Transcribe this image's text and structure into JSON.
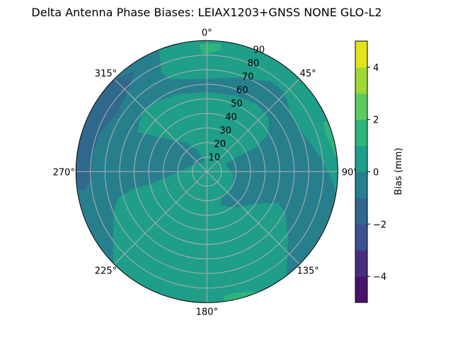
{
  "chart_data": {
    "type": "polar-contour",
    "title": "Delta Antenna Phase Biases: LEIAX1203+GNSS  NONE GLO-L2",
    "theta_ticks": [
      "0°",
      "45°",
      "90°",
      "135°",
      "180°",
      "225°",
      "270°",
      "315°"
    ],
    "theta_zero": "top",
    "theta_direction": "clockwise",
    "r_ticks": [
      "10",
      "20",
      "30",
      "40",
      "50",
      "60",
      "70",
      "80",
      "90"
    ],
    "r_range": [
      0,
      90
    ],
    "grid": true,
    "colorbar": {
      "label": "Bias (mm)",
      "levels": [
        -5,
        -4,
        -3,
        -2,
        -1,
        0,
        1,
        2,
        3,
        4,
        5
      ],
      "ticks": [
        "−4",
        "−2",
        "0",
        "2",
        "4"
      ],
      "tick_values": [
        -4,
        -2,
        0,
        2,
        4
      ],
      "colors": [
        "#481467",
        "#472f7d",
        "#3b518b",
        "#30688e",
        "#277f8e",
        "#1f9e89",
        "#2fb47c",
        "#5ec962",
        "#9fd938",
        "#e0e31e"
      ],
      "colormap": "viridis"
    },
    "dominant_level_range": [
      -1,
      0
    ],
    "regions": [
      {
        "range": [
          0,
          1
        ],
        "where": "outer ring north to east, inner blob north-northeast, broad area south"
      },
      {
        "range": [
          -2,
          -1
        ],
        "where": "outer ring west-northwest (260°–315°)"
      },
      {
        "range": [
          1,
          2
        ],
        "where": "small patches at rim near 0°, 70°, 170°"
      }
    ]
  }
}
